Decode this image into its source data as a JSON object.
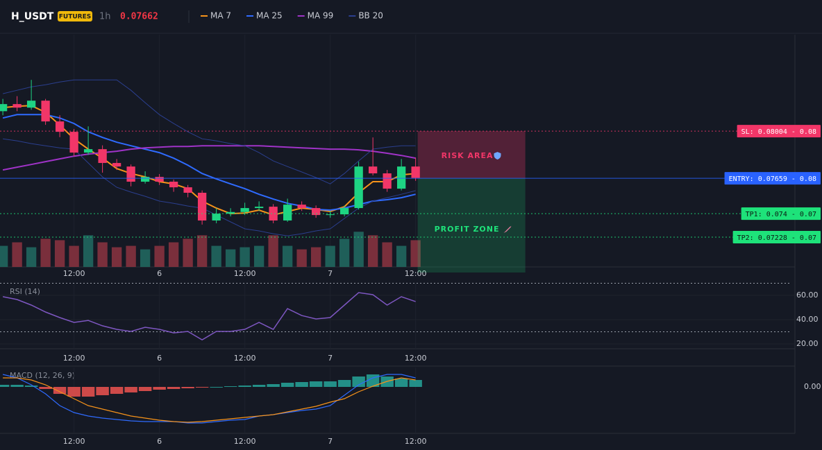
{
  "header": {
    "symbol": "H_USDT",
    "badge": "FUTURES",
    "interval": "1h",
    "price": 0.07662
  },
  "chart_data": [
    {
      "type": "candlestick",
      "x": [
        -10,
        -8,
        -6,
        -4,
        -2,
        0,
        2,
        4,
        6,
        8,
        10,
        12,
        14,
        16,
        18,
        20,
        22,
        24,
        26,
        28,
        30,
        32,
        34,
        36,
        38,
        40,
        42,
        44,
        46,
        48
      ],
      "xlim": [
        -10.4,
        101.3
      ],
      "xticks": [
        {
          "value": 0,
          "label": "12:00"
        },
        {
          "value": 12,
          "label": "6"
        },
        {
          "value": 24,
          "label": "12:00"
        },
        {
          "value": 36,
          "label": "7"
        },
        {
          "value": 48,
          "label": "12:00"
        }
      ],
      "ylim": [
        0.0701,
        0.0871
      ],
      "open": [
        0.0815,
        0.08202,
        0.08176,
        0.08227,
        0.08075,
        0.07999,
        0.07847,
        0.07872,
        0.07771,
        0.07745,
        0.07634,
        0.07669,
        0.07634,
        0.07593,
        0.07553,
        0.0735,
        0.074,
        0.07412,
        0.07441,
        0.07451,
        0.0735,
        0.07466,
        0.07441,
        0.0739,
        0.07395,
        0.07441,
        0.07745,
        0.07695,
        0.07583,
        0.07745
      ],
      "high": [
        0.0824,
        0.0826,
        0.08379,
        0.0824,
        0.0812,
        0.0802,
        0.08039,
        0.079,
        0.078,
        0.0776,
        0.0771,
        0.0769,
        0.0765,
        0.0761,
        0.0757,
        0.0744,
        0.0744,
        0.0748,
        0.0749,
        0.0747,
        0.0751,
        0.0749,
        0.0746,
        0.0742,
        0.0746,
        0.0778,
        0.07958,
        0.0772,
        0.078,
        0.0781
      ],
      "low": [
        0.0812,
        0.0815,
        0.0816,
        0.0805,
        0.0796,
        0.0782,
        0.0783,
        0.077,
        0.0772,
        0.076,
        0.0762,
        0.0761,
        0.0756,
        0.0752,
        0.0732,
        0.0733,
        0.0738,
        0.0739,
        0.0742,
        0.0733,
        0.0734,
        0.0742,
        0.0737,
        0.0737,
        0.0738,
        0.0743,
        0.0768,
        0.0756,
        0.0757,
        0.0764
      ],
      "close": [
        0.08202,
        0.08176,
        0.08227,
        0.08075,
        0.07999,
        0.07847,
        0.07872,
        0.07771,
        0.07745,
        0.07634,
        0.07669,
        0.07634,
        0.07593,
        0.07553,
        0.0735,
        0.074,
        0.07412,
        0.07441,
        0.07451,
        0.0735,
        0.07466,
        0.07441,
        0.0739,
        0.07395,
        0.07441,
        0.07745,
        0.07695,
        0.07583,
        0.07745,
        0.07662
      ],
      "up_color": "#1ed483",
      "down_color": "#f23668",
      "volume": [
        30,
        35,
        28,
        40,
        38,
        30,
        45,
        35,
        28,
        30,
        25,
        30,
        35,
        40,
        45,
        30,
        25,
        28,
        30,
        45,
        30,
        25,
        28,
        30,
        40,
        50,
        45,
        35,
        30,
        38
      ],
      "volume_lim": [
        0,
        330
      ],
      "volume_up_color": "#1f5f59",
      "volume_down_color": "#7a2f3c",
      "series": [
        {
          "name": "MA 7",
          "color": "#f7931a",
          "values": [
            0.08176,
            0.08186,
            0.08191,
            0.08141,
            0.08049,
            0.07948,
            0.07872,
            0.07806,
            0.0773,
            0.07694,
            0.07669,
            0.07634,
            0.07618,
            0.07583,
            0.07492,
            0.07441,
            0.074,
            0.07405,
            0.07426,
            0.0739,
            0.07416,
            0.07441,
            0.07431,
            0.07416,
            0.07451,
            0.07553,
            0.07634,
            0.07634,
            0.07684,
            0.07694
          ]
        },
        {
          "name": "MA 25",
          "color": "#2f6bff",
          "values": [
            0.081,
            0.08125,
            0.08125,
            0.08125,
            0.081,
            0.0806,
            0.07999,
            0.07958,
            0.07923,
            0.07897,
            0.07872,
            0.07847,
            0.07806,
            0.07755,
            0.07694,
            0.07654,
            0.07618,
            0.07583,
            0.07542,
            0.07507,
            0.07476,
            0.07456,
            0.07431,
            0.07426,
            0.07441,
            0.07466,
            0.07492,
            0.07502,
            0.07517,
            0.07542
          ]
        },
        {
          "name": "MA 99",
          "color": "#a033c8",
          "values": [
            0.0772,
            0.0774,
            0.0776,
            0.07781,
            0.07801,
            0.07821,
            0.07836,
            0.07847,
            0.07857,
            0.07872,
            0.07882,
            0.07887,
            0.07892,
            0.07892,
            0.07897,
            0.07897,
            0.07897,
            0.07897,
            0.07897,
            0.07892,
            0.07887,
            0.07882,
            0.07877,
            0.07872,
            0.07872,
            0.07867,
            0.07857,
            0.07842,
            0.07826,
            0.07806
          ]
        },
        {
          "name": "BB 20",
          "color": "#2b3f8f",
          "upper": [
            0.08278,
            0.08303,
            0.08328,
            0.08343,
            0.08364,
            0.08379,
            0.08379,
            0.08379,
            0.08379,
            0.08303,
            0.08212,
            0.08125,
            0.0806,
            0.07999,
            0.07948,
            0.07933,
            0.07913,
            0.07897,
            0.07847,
            0.07786,
            0.07745,
            0.07705,
            0.07664,
            0.07618,
            0.07694,
            0.07786,
            0.07872,
            0.07887,
            0.07897,
            0.07897
          ],
          "lower": [
            0.07948,
            0.07933,
            0.07913,
            0.07897,
            0.07882,
            0.07872,
            0.07771,
            0.07669,
            0.07593,
            0.07558,
            0.07527,
            0.07492,
            0.07476,
            0.07456,
            0.07441,
            0.0739,
            0.0734,
            0.07289,
            0.07274,
            0.07253,
            0.07238,
            0.07253,
            0.07274,
            0.07289,
            0.07365,
            0.07441,
            0.07492,
            0.07517,
            0.07542,
            0.07568
          ]
        }
      ],
      "levels": [
        {
          "value": 0.08004,
          "label": "SL: 0.08004 - 0.08",
          "color": "#f23668",
          "text_color": "#ffffff",
          "dotted": true
        },
        {
          "value": 0.07659,
          "label": "ENTRY: 0.07659 - 0.08",
          "color": "#2962ff",
          "text_color": "#ffffff",
          "dotted": false
        },
        {
          "value": 0.074,
          "label": "TP1: 0.074 - 0.07",
          "color": "#1ee27a",
          "text_color": "#0b1a12",
          "dotted": true
        },
        {
          "value": 0.07228,
          "label": "TP2: 0.07228 - 0.07",
          "color": "#1ee27a",
          "text_color": "#0b1a12",
          "dotted": true
        }
      ],
      "zones": [
        "RISK AREA",
        "PROFIT ZONE"
      ]
    },
    {
      "type": "line",
      "title": "RSI (14)",
      "series": [
        {
          "color": "#7e57c2",
          "values": [
            58.9,
            56.6,
            52,
            46.3,
            41.7,
            37.7,
            39.4,
            34.9,
            32,
            30.3,
            33.7,
            32,
            29.1,
            30.3,
            23.4,
            30.3,
            30.3,
            32,
            37.7,
            32,
            49.1,
            43.4,
            40.6,
            41.7,
            52,
            62.3,
            60.6,
            52,
            58.9,
            54.9
          ]
        }
      ],
      "ylim": [
        16,
        70.3
      ],
      "yticks": [
        {
          "value": 20,
          "label": "20.00"
        },
        {
          "value": 40,
          "label": "40.00"
        },
        {
          "value": 60,
          "label": "60.00"
        }
      ],
      "levels": [
        30,
        70
      ]
    },
    {
      "type": "macd",
      "title": "MACD (12, 26, 9)",
      "histogram": [
        6e-05,
        6e-05,
        4e-05,
        -6e-05,
        -0.0002,
        -0.00028,
        -0.00028,
        -0.00024,
        -0.0002,
        -0.00016,
        -0.00012,
        -8e-05,
        -6e-05,
        -4e-05,
        -2e-05,
        0,
        2e-05,
        4e-05,
        6e-05,
        8e-05,
        0.00012,
        0.00014,
        0.00016,
        0.00016,
        0.0002,
        0.0003,
        0.00036,
        0.0003,
        0.00024,
        0.0002
      ],
      "pos_color": "#26a69a",
      "neg_color": "#ef5350",
      "series": [
        {
          "color": "#2f6bff",
          "values": [
            0.00036,
            0.00026,
            6e-05,
            -0.0002,
            -0.00054,
            -0.00074,
            -0.00084,
            -0.0009,
            -0.00094,
            -0.00098,
            -0.001,
            -0.001,
            -0.001,
            -0.00104,
            -0.00104,
            -0.001,
            -0.00096,
            -0.00094,
            -0.00084,
            -0.0008,
            -0.00074,
            -0.00068,
            -0.00064,
            -0.00054,
            -0.00024,
            6e-05,
            0.00026,
            0.00036,
            0.00036,
            0.00026
          ]
        },
        {
          "color": "#f7931a",
          "values": [
            0.00026,
            0.00026,
            0.0002,
            6e-05,
            -0.00014,
            -0.00034,
            -0.00054,
            -0.00064,
            -0.00074,
            -0.00084,
            -0.0009,
            -0.00096,
            -0.001,
            -0.00102,
            -0.001,
            -0.00096,
            -0.00092,
            -0.00088,
            -0.00084,
            -0.0008,
            -0.00072,
            -0.00064,
            -0.00056,
            -0.00044,
            -0.00034,
            -0.00014,
            2e-05,
            0.00016,
            0.00026,
            0.0002
          ]
        }
      ],
      "ylim": [
        -0.00134,
        0.00056
      ],
      "yticks": [
        {
          "value": 0,
          "label": "0.00"
        }
      ]
    }
  ]
}
